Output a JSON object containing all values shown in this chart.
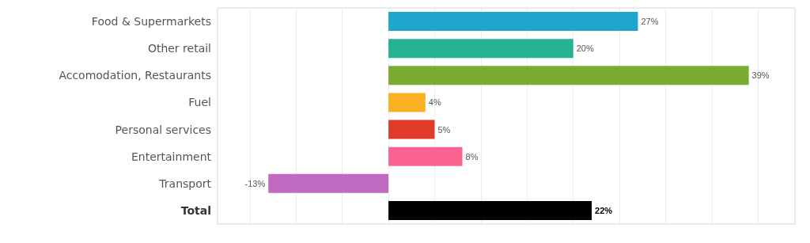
{
  "chart_data": {
    "type": "bar",
    "orientation": "horizontal",
    "categories": [
      "Food & Supermarkets",
      "Other retail",
      "Accomodation, Restaurants",
      "Fuel",
      "Personal services",
      "Entertainment",
      "Transport",
      "Total"
    ],
    "values": [
      27,
      20,
      39,
      4,
      5,
      8,
      -13,
      22
    ],
    "value_labels": [
      "27%",
      "20%",
      "39%",
      "4%",
      "5%",
      "8%",
      "-13%",
      "22%"
    ],
    "colors": [
      "#1fa6cc",
      "#23b391",
      "#79ac2f",
      "#f9b023",
      "#e13a29",
      "#fb6390",
      "#c06bc1",
      "#000000"
    ],
    "xlim": [
      -18.5,
      44
    ],
    "xticks": [
      {
        "value": -15,
        "label": null
      },
      {
        "value": -10,
        "label": null
      },
      {
        "value": -5,
        "label": null
      },
      {
        "value": 0,
        "label": null
      },
      {
        "value": 5,
        "label": null
      },
      {
        "value": 10,
        "label": null
      },
      {
        "value": 15,
        "label": null
      },
      {
        "value": 20,
        "label": null
      },
      {
        "value": 25,
        "label": null
      },
      {
        "value": 30,
        "label": null
      },
      {
        "value": 35,
        "label": null
      },
      {
        "value": 40,
        "label": null
      }
    ],
    "grid": "x",
    "tick_labels": "y"
  }
}
